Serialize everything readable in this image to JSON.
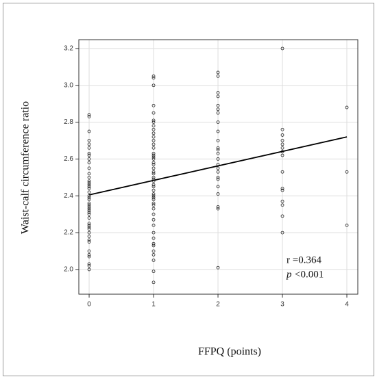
{
  "chart_data": {
    "type": "scatter",
    "xlabel": "FFPQ (points)",
    "ylabel": "Waist-calf circumference ratio",
    "annotation": {
      "r": "r =0.364",
      "p_label": "p",
      "p_value": "<0.001"
    },
    "xlim": [
      -0.16,
      4.17
    ],
    "ylim": [
      1.866,
      3.248
    ],
    "xticks": [
      0,
      1,
      2,
      3,
      4
    ],
    "yticks": [
      {
        "value": 2,
        "label": "2.0"
      },
      2.2,
      2.4,
      2.6,
      2.8,
      {
        "value": 3,
        "label": "3.0"
      },
      3.2
    ],
    "grid": true,
    "color": "#222222",
    "groups": [
      {
        "x": 0,
        "values": [
          2.84,
          2.83,
          2.75,
          2.7,
          2.68,
          2.66,
          2.63,
          2.62,
          2.6,
          2.58,
          2.55,
          2.52,
          2.5,
          2.48,
          2.47,
          2.46,
          2.45,
          2.44,
          2.42,
          2.4,
          2.39,
          2.38,
          2.36,
          2.35,
          2.34,
          2.33,
          2.32,
          2.31,
          2.3,
          2.28,
          2.25,
          2.24,
          2.23,
          2.22,
          2.2,
          2.18,
          2.16,
          2.15,
          2.1,
          2.08,
          2.07,
          2.03,
          2.02,
          2.0
        ]
      },
      {
        "x": 1,
        "values": [
          3.05,
          3.04,
          3.0,
          2.89,
          2.85,
          2.81,
          2.8,
          2.78,
          2.76,
          2.74,
          2.72,
          2.7,
          2.68,
          2.66,
          2.63,
          2.62,
          2.61,
          2.6,
          2.58,
          2.57,
          2.55,
          2.53,
          2.52,
          2.5,
          2.49,
          2.48,
          2.46,
          2.45,
          2.43,
          2.41,
          2.4,
          2.39,
          2.38,
          2.36,
          2.35,
          2.33,
          2.3,
          2.27,
          2.24,
          2.2,
          2.17,
          2.14,
          2.13,
          2.1,
          2.08,
          2.05,
          1.99,
          1.93
        ]
      },
      {
        "x": 2,
        "values": [
          3.07,
          3.05,
          2.96,
          2.94,
          2.89,
          2.87,
          2.85,
          2.8,
          2.75,
          2.7,
          2.66,
          2.65,
          2.63,
          2.6,
          2.57,
          2.55,
          2.53,
          2.5,
          2.49,
          2.45,
          2.41,
          2.34,
          2.33,
          2.01
        ]
      },
      {
        "x": 3,
        "values": [
          3.2,
          2.76,
          2.73,
          2.7,
          2.68,
          2.66,
          2.64,
          2.62,
          2.53,
          2.44,
          2.43,
          2.37,
          2.35,
          2.29,
          2.2
        ]
      },
      {
        "x": 4,
        "values": [
          2.88,
          2.53,
          2.24
        ]
      }
    ],
    "trend_line": {
      "x": [
        0,
        4
      ],
      "values": [
        2.405,
        2.72
      ]
    }
  }
}
